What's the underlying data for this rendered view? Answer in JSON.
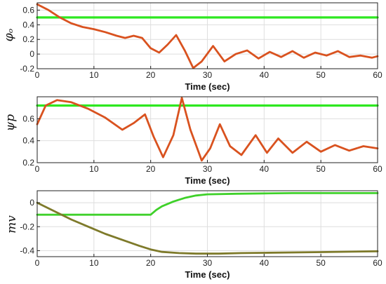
{
  "chart_data": [
    {
      "type": "line",
      "ylabel": "φₒ",
      "xlabel": "Time (sec)",
      "xlim": [
        0,
        60
      ],
      "ylim": [
        -0.2,
        0.7
      ],
      "xticks": [
        "0",
        "10",
        "20",
        "30",
        "40",
        "50",
        "60"
      ],
      "yticks": [
        "-0.2",
        "0",
        "0.2",
        "0.4",
        "0.6"
      ],
      "grid": true,
      "colors": {
        "setpoint": "#2ee820",
        "response": "#d9521f"
      },
      "series": [
        {
          "role": "setpoint",
          "x": [
            0,
            60
          ],
          "y": [
            0.5,
            0.5
          ]
        },
        {
          "role": "response",
          "x": [
            0,
            2,
            4,
            6,
            8,
            10,
            12,
            14,
            15.5,
            17,
            18.5,
            20,
            21.5,
            23,
            24.5,
            26,
            27.5,
            29,
            31,
            33,
            35,
            37,
            39,
            41,
            43,
            45,
            47,
            49,
            51,
            53,
            55,
            57,
            59,
            60
          ],
          "y": [
            0.68,
            0.6,
            0.5,
            0.42,
            0.37,
            0.34,
            0.3,
            0.25,
            0.22,
            0.25,
            0.22,
            0.08,
            0.02,
            0.13,
            0.26,
            0.05,
            -0.19,
            -0.1,
            0.11,
            -0.1,
            0.0,
            0.05,
            -0.06,
            0.03,
            -0.04,
            0.04,
            -0.05,
            0.02,
            -0.02,
            0.04,
            -0.04,
            -0.02,
            -0.05,
            -0.03
          ]
        }
      ]
    },
    {
      "type": "line",
      "ylabel": "ψp",
      "xlabel": "Time (sec)",
      "xlim": [
        0,
        60
      ],
      "ylim": [
        0.2,
        0.8
      ],
      "xticks": [
        "0",
        "10",
        "20",
        "30",
        "40",
        "50",
        "60"
      ],
      "yticks": [
        "0.2",
        "0.4",
        "0.6"
      ],
      "grid": true,
      "colors": {
        "setpoint": "#2ee820",
        "response": "#d9521f"
      },
      "series": [
        {
          "role": "setpoint",
          "x": [
            0,
            60
          ],
          "y": [
            0.72,
            0.72
          ]
        },
        {
          "role": "response",
          "x": [
            0,
            1.5,
            3.5,
            6,
            9,
            12,
            15,
            17,
            19,
            20.5,
            22.2,
            24,
            25.5,
            27,
            29,
            30.5,
            32.2,
            34,
            36,
            38.5,
            40.5,
            42.5,
            45,
            47.5,
            50,
            52.5,
            55,
            57.5,
            60
          ],
          "y": [
            0.55,
            0.72,
            0.77,
            0.75,
            0.69,
            0.61,
            0.5,
            0.56,
            0.64,
            0.44,
            0.25,
            0.45,
            0.79,
            0.5,
            0.22,
            0.33,
            0.55,
            0.35,
            0.27,
            0.45,
            0.29,
            0.42,
            0.29,
            0.39,
            0.3,
            0.36,
            0.31,
            0.35,
            0.33
          ]
        }
      ]
    },
    {
      "type": "line",
      "ylabel": "mv",
      "xlabel": "Time (sec)",
      "xlim": [
        0,
        60
      ],
      "ylim": [
        -0.45,
        0.1
      ],
      "xticks": [
        "0",
        "10",
        "20",
        "30",
        "40",
        "50",
        "60"
      ],
      "yticks": [
        "-0.4",
        "-0.2",
        "0"
      ],
      "grid": true,
      "colors": {
        "upper": "#3fd12a",
        "lower": "#7e7a2a"
      },
      "series": [
        {
          "role": "upper",
          "x": [
            0,
            20,
            21,
            22,
            24,
            26,
            28,
            30,
            35,
            40,
            45,
            60
          ],
          "y": [
            -0.1,
            -0.1,
            -0.06,
            -0.03,
            0.01,
            0.04,
            0.06,
            0.07,
            0.075,
            0.078,
            0.08,
            0.08
          ]
        },
        {
          "role": "lower",
          "x": [
            0,
            3,
            6,
            9,
            12,
            15,
            18,
            20,
            22,
            25,
            28,
            32,
            36,
            40,
            50,
            60
          ],
          "y": [
            0.0,
            -0.07,
            -0.14,
            -0.2,
            -0.26,
            -0.31,
            -0.36,
            -0.39,
            -0.41,
            -0.42,
            -0.425,
            -0.425,
            -0.42,
            -0.418,
            -0.412,
            -0.405
          ]
        }
      ]
    }
  ]
}
